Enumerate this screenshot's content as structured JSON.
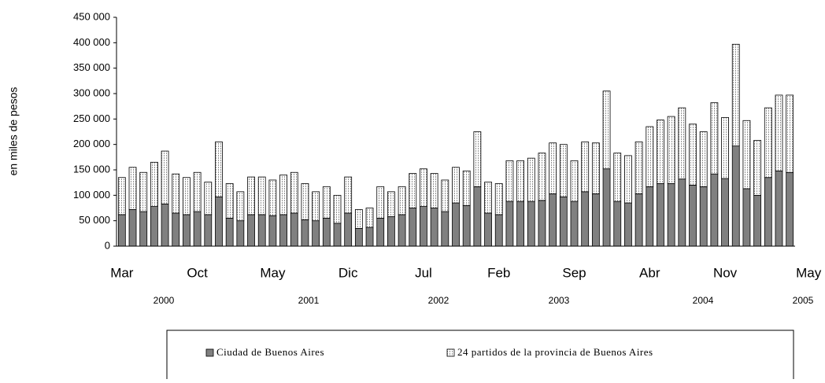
{
  "chart_data": {
    "type": "stacked-bar",
    "y_label": "en miles de pesos",
    "categories": [
      "Mar",
      null,
      null,
      null,
      null,
      null,
      null,
      "Oct",
      null,
      null,
      null,
      null,
      null,
      null,
      "May",
      null,
      null,
      null,
      null,
      null,
      null,
      "Dic",
      null,
      null,
      null,
      null,
      null,
      null,
      "Jul",
      null,
      null,
      null,
      null,
      null,
      null,
      "Feb",
      null,
      null,
      null,
      null,
      null,
      null,
      "Sep",
      null,
      null,
      null,
      null,
      null,
      null,
      "Abr",
      null,
      null,
      null,
      null,
      null,
      null,
      "Nov",
      null,
      null,
      null,
      null,
      null,
      "May"
    ],
    "years": [
      "2000",
      "2001",
      "2002",
      "2003",
      "2004",
      "2005"
    ],
    "series": [
      {
        "name": "Ciudad de Buenos Aires",
        "color": "#808080",
        "values": [
          62000,
          72000,
          68000,
          78000,
          83000,
          65000,
          62000,
          68000,
          62000,
          97000,
          55000,
          50000,
          62000,
          62000,
          60000,
          62000,
          65000,
          52000,
          50000,
          55000,
          45000,
          65000,
          35000,
          37000,
          55000,
          58000,
          62000,
          75000,
          78000,
          75000,
          68000,
          85000,
          80000,
          117000,
          65000,
          62000,
          88000,
          88000,
          88000,
          90000,
          103000,
          97000,
          88000,
          107000,
          103000,
          152000,
          88000,
          85000,
          103000,
          117000,
          123000,
          123000,
          132000,
          120000,
          117000,
          142000,
          133000,
          197000,
          113000,
          100000,
          135000,
          148000,
          145000
        ]
      },
      {
        "name": "24 partidos de la provincia de Buenos Aires",
        "color": "#ffffff",
        "values": [
          73000,
          83000,
          77000,
          87000,
          104000,
          77000,
          73000,
          77000,
          64000,
          108000,
          68000,
          57000,
          74000,
          74000,
          70000,
          78000,
          80000,
          71000,
          57000,
          62000,
          55000,
          71000,
          37000,
          38000,
          62000,
          49000,
          55000,
          68000,
          74000,
          68000,
          62000,
          70000,
          68000,
          108000,
          61000,
          61000,
          80000,
          80000,
          85000,
          93000,
          100000,
          103000,
          80000,
          98000,
          100000,
          153000,
          95000,
          93000,
          102000,
          118000,
          125000,
          132000,
          140000,
          120000,
          108000,
          140000,
          120000,
          200000,
          134000,
          108000,
          137000,
          149000,
          152000
        ]
      }
    ],
    "ylim": [
      0,
      450000
    ],
    "yticks": [
      {
        "value": 0,
        "label": "0"
      },
      {
        "value": 50000,
        "label": "50 000"
      },
      {
        "value": 100000,
        "label": "100 000"
      },
      {
        "value": 150000,
        "label": "150 000"
      },
      {
        "value": 200000,
        "label": "200 000"
      },
      {
        "value": 250000,
        "label": "250 000"
      },
      {
        "value": 300000,
        "label": "300 000"
      },
      {
        "value": 350000,
        "label": "350 000"
      },
      {
        "value": 400000,
        "label": "400 000"
      },
      {
        "value": 450000,
        "label": "450 000"
      }
    ],
    "grid": false,
    "legend": "bottom"
  }
}
